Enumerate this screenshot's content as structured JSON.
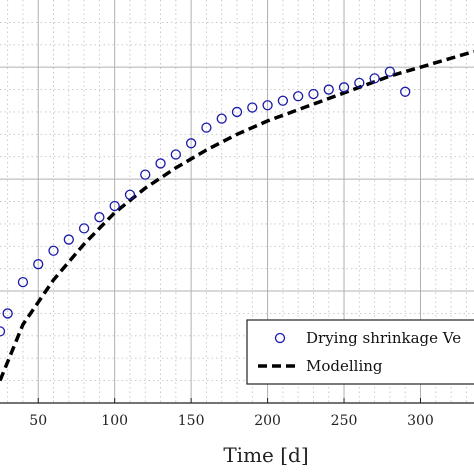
{
  "chart_data": {
    "type": "scatter",
    "xlabel": "Time [d]",
    "xlim": [
      25,
      335
    ],
    "xticks": [
      50,
      100,
      150,
      200,
      250,
      300
    ],
    "grid": true,
    "legend_position": "bottom-right",
    "series": [
      {
        "name": "Drying shrinkage Ve",
        "kind": "scatter",
        "marker": "open-circle",
        "color": "#1a1aaa",
        "x": [
          25,
          30,
          40,
          50,
          60,
          70,
          80,
          90,
          100,
          110,
          120,
          130,
          140,
          150,
          160,
          170,
          180,
          190,
          200,
          210,
          220,
          230,
          240,
          250,
          260,
          270,
          280,
          290
        ],
        "y": [
          0.32,
          0.4,
          0.54,
          0.62,
          0.68,
          0.73,
          0.78,
          0.83,
          0.88,
          0.93,
          1.02,
          1.07,
          1.11,
          1.16,
          1.23,
          1.27,
          1.3,
          1.32,
          1.33,
          1.35,
          1.37,
          1.38,
          1.4,
          1.41,
          1.43,
          1.45,
          1.48,
          1.39
        ]
      },
      {
        "name": "Modelling",
        "kind": "line",
        "style": "dashed",
        "color": "#000000",
        "x": [
          25,
          40,
          60,
          80,
          100,
          120,
          140,
          160,
          180,
          200,
          220,
          240,
          260,
          280,
          300,
          320,
          335
        ],
        "y": [
          0.1,
          0.35,
          0.55,
          0.71,
          0.85,
          0.96,
          1.05,
          1.13,
          1.2,
          1.26,
          1.31,
          1.36,
          1.41,
          1.46,
          1.5,
          1.54,
          1.57
        ]
      }
    ]
  }
}
